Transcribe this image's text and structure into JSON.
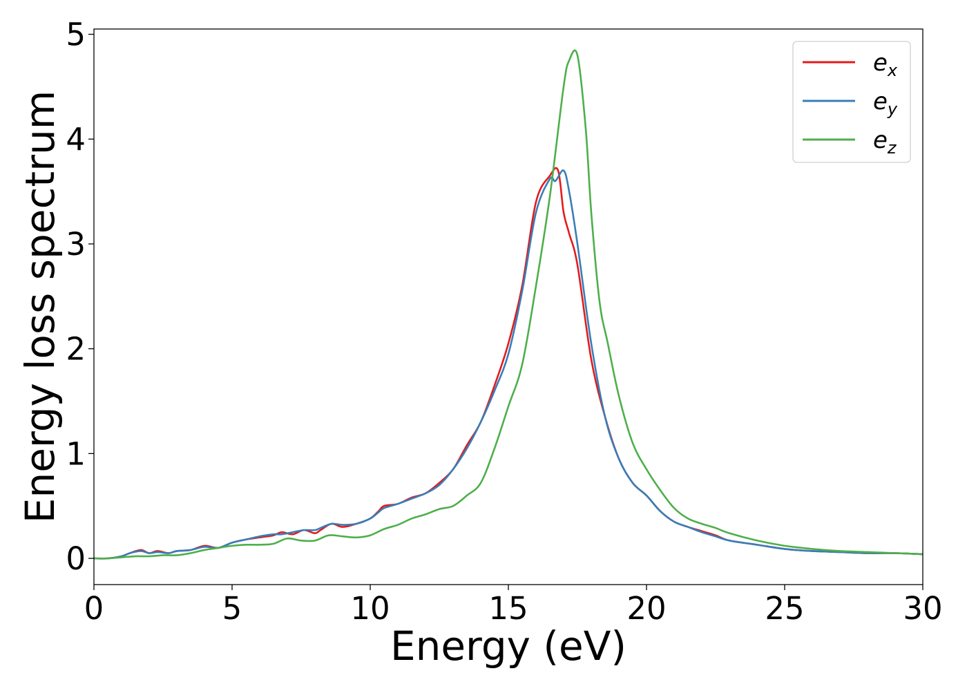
{
  "chart_data": {
    "type": "line",
    "title": "",
    "xlabel": "Energy (eV)",
    "ylabel": "Energy loss spectrum",
    "xlim": [
      0,
      30
    ],
    "ylim": [
      -0.25,
      5.05
    ],
    "xticks": [
      "0",
      "5",
      "10",
      "15",
      "20",
      "25",
      "30"
    ],
    "yticks": [
      "0",
      "1",
      "2",
      "3",
      "4",
      "5"
    ],
    "grid": false,
    "legend_position": "top-right",
    "series": [
      {
        "name": "e_x",
        "legend_base": "e",
        "legend_sub": "x",
        "color": "#e41a1c",
        "x": [
          0,
          0.5,
          1,
          1.3,
          1.7,
          2,
          2.3,
          2.7,
          3,
          3.5,
          4,
          4.5,
          5,
          5.5,
          6,
          6.5,
          6.8,
          7.2,
          7.6,
          8,
          8.2,
          8.6,
          9,
          9.5,
          10,
          10.3,
          10.5,
          11,
          11.5,
          12,
          12.5,
          13,
          13.5,
          14,
          14.5,
          15,
          15.5,
          16,
          16.5,
          16.8,
          17,
          17.2,
          17.5,
          18,
          18.5,
          19,
          19.5,
          20,
          20.5,
          21,
          21.5,
          22,
          22.5,
          23,
          24,
          25,
          26,
          27,
          28,
          29,
          30
        ],
        "y": [
          0,
          0,
          0.02,
          0.05,
          0.08,
          0.05,
          0.07,
          0.05,
          0.07,
          0.08,
          0.12,
          0.1,
          0.15,
          0.18,
          0.2,
          0.22,
          0.25,
          0.23,
          0.27,
          0.24,
          0.27,
          0.33,
          0.3,
          0.33,
          0.38,
          0.45,
          0.5,
          0.52,
          0.58,
          0.62,
          0.72,
          0.85,
          1.08,
          1.3,
          1.65,
          2.05,
          2.6,
          3.4,
          3.65,
          3.7,
          3.3,
          3.1,
          2.8,
          1.9,
          1.35,
          0.95,
          0.72,
          0.6,
          0.45,
          0.35,
          0.3,
          0.26,
          0.22,
          0.17,
          0.13,
          0.09,
          0.07,
          0.06,
          0.05,
          0.05,
          0.04
        ]
      },
      {
        "name": "e_y",
        "legend_base": "e",
        "legend_sub": "y",
        "color": "#377eb8",
        "x": [
          0,
          0.5,
          1,
          1.3,
          1.7,
          2,
          2.3,
          2.7,
          3,
          3.5,
          4,
          4.5,
          5,
          5.5,
          6,
          6.5,
          6.8,
          7.2,
          7.6,
          8,
          8.2,
          8.6,
          9,
          9.5,
          10,
          10.3,
          10.5,
          11,
          11.5,
          12,
          12.5,
          13,
          13.5,
          14,
          14.5,
          15,
          15.5,
          16,
          16.5,
          16.7,
          17,
          17.2,
          17.5,
          18,
          18.5,
          19,
          19.5,
          20,
          20.5,
          21,
          21.5,
          22,
          22.5,
          23,
          24,
          25,
          26,
          27,
          28,
          29,
          30
        ],
        "y": [
          0,
          0,
          0.02,
          0.05,
          0.07,
          0.05,
          0.06,
          0.05,
          0.07,
          0.08,
          0.11,
          0.1,
          0.15,
          0.18,
          0.21,
          0.23,
          0.23,
          0.25,
          0.27,
          0.27,
          0.29,
          0.33,
          0.32,
          0.33,
          0.38,
          0.44,
          0.48,
          0.52,
          0.57,
          0.62,
          0.7,
          0.85,
          1.05,
          1.3,
          1.6,
          1.95,
          2.55,
          3.3,
          3.62,
          3.6,
          3.7,
          3.5,
          3.0,
          2.05,
          1.35,
          0.95,
          0.72,
          0.6,
          0.45,
          0.35,
          0.3,
          0.25,
          0.21,
          0.17,
          0.13,
          0.09,
          0.07,
          0.06,
          0.05,
          0.05,
          0.04
        ]
      },
      {
        "name": "e_z",
        "legend_base": "e",
        "legend_sub": "z",
        "color": "#4daf4a",
        "x": [
          0,
          0.5,
          1,
          1.5,
          2,
          2.5,
          3,
          3.5,
          4,
          4.5,
          5,
          5.5,
          6,
          6.5,
          7,
          7.5,
          8,
          8.5,
          9,
          9.5,
          10,
          10.5,
          11,
          11.5,
          12,
          12.5,
          13,
          13.5,
          14,
          14.5,
          15,
          15.5,
          16,
          16.5,
          17,
          17.2,
          17.5,
          17.8,
          18,
          18.3,
          18.6,
          19,
          19.5,
          20,
          20.5,
          21,
          21.5,
          22,
          22.5,
          23,
          24,
          25,
          26,
          27,
          28,
          29,
          30
        ],
        "y": [
          0,
          0,
          0.01,
          0.02,
          0.02,
          0.03,
          0.03,
          0.05,
          0.08,
          0.1,
          0.12,
          0.13,
          0.13,
          0.14,
          0.19,
          0.17,
          0.17,
          0.22,
          0.21,
          0.2,
          0.22,
          0.28,
          0.32,
          0.38,
          0.42,
          0.47,
          0.5,
          0.6,
          0.72,
          1.05,
          1.45,
          1.85,
          2.6,
          3.45,
          4.5,
          4.75,
          4.8,
          4.1,
          3.3,
          2.45,
          2.05,
          1.55,
          1.1,
          0.85,
          0.65,
          0.48,
          0.38,
          0.33,
          0.29,
          0.24,
          0.17,
          0.12,
          0.09,
          0.07,
          0.06,
          0.05,
          0.04
        ]
      }
    ]
  }
}
